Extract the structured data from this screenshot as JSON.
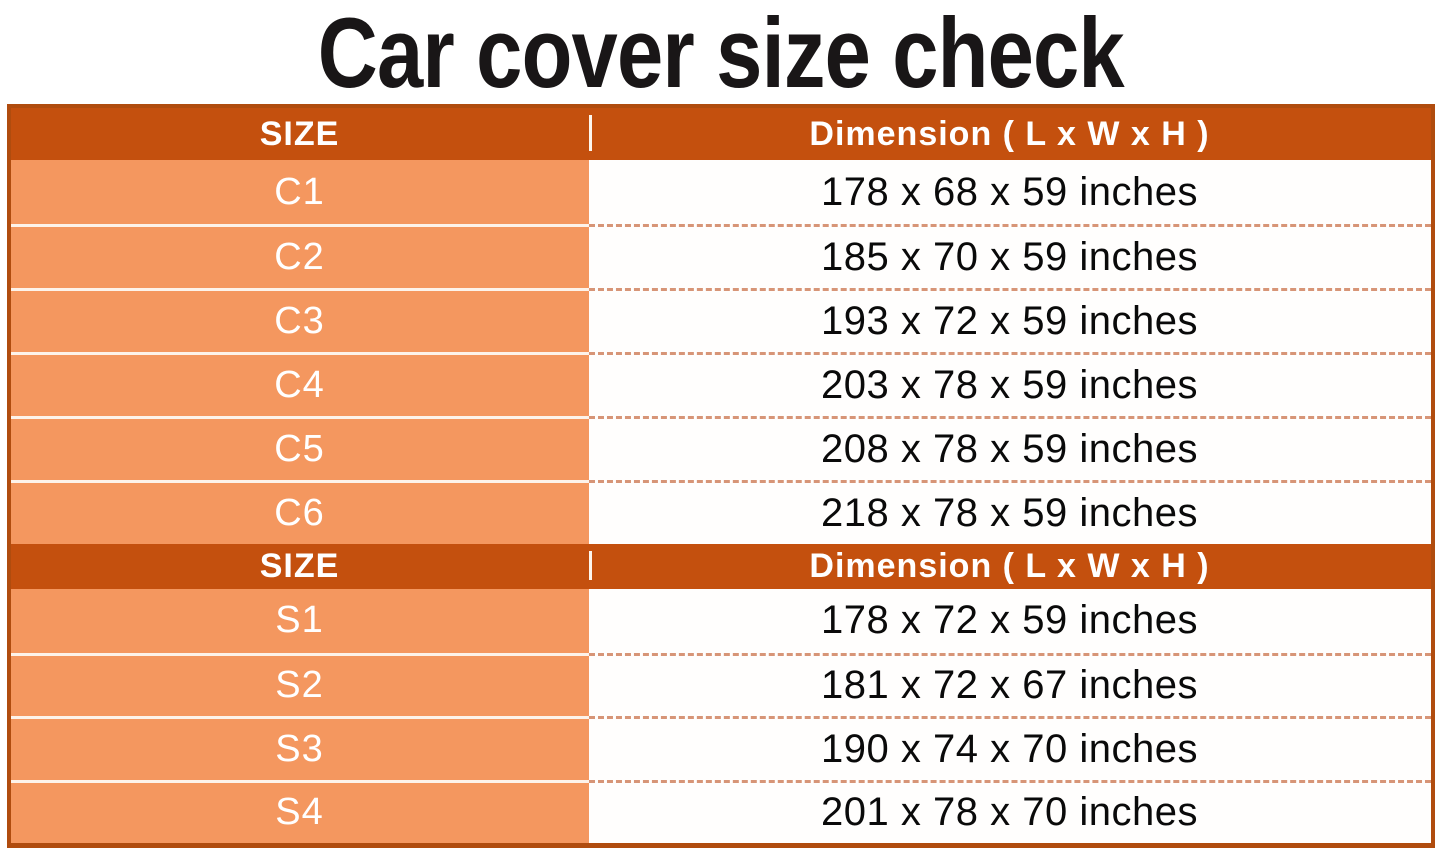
{
  "title": "Car cover size check",
  "colors": {
    "header_bg": "#c4500e",
    "size_cell_bg": "#f4975f",
    "table_border": "#b04c0e",
    "size_row_divider": "#fdf3ea",
    "dashed_divider": "#d79577",
    "dim_cell_bg": "#fffefd",
    "header_text": "#ffffff",
    "size_text": "#ffffff",
    "dimension_text": "#0a0a0a",
    "title_text": "#191617"
  },
  "tables": [
    {
      "header": {
        "size_label": "SIZE",
        "dimension_label": "Dimension ( L x W x H )"
      },
      "rows": [
        {
          "size": "C1",
          "dimension": "178 x 68 x 59 inches"
        },
        {
          "size": "C2",
          "dimension": "185 x 70 x 59 inches"
        },
        {
          "size": "C3",
          "dimension": "193 x 72 x 59 inches"
        },
        {
          "size": "C4",
          "dimension": "203 x 78 x 59 inches"
        },
        {
          "size": "C5",
          "dimension": "208 x 78 x 59 inches"
        },
        {
          "size": "C6",
          "dimension": "218 x 78 x 59 inches"
        }
      ]
    },
    {
      "header": {
        "size_label": "SIZE",
        "dimension_label": "Dimension ( L x W x H )"
      },
      "rows": [
        {
          "size": "S1",
          "dimension": "178 x 72 x 59 inches"
        },
        {
          "size": "S2",
          "dimension": "181 x 72 x 67 inches"
        },
        {
          "size": "S3",
          "dimension": "190 x 74 x 70 inches"
        },
        {
          "size": "S4",
          "dimension": "201 x 78 x 70 inches"
        }
      ]
    }
  ]
}
